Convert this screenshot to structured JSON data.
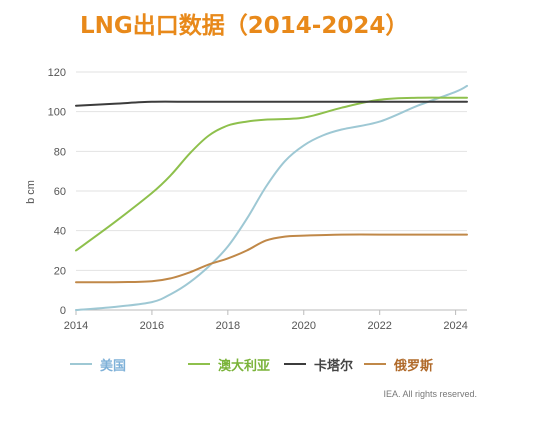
{
  "chart_data": {
    "type": "line",
    "title": "LNG出口数据（2014-2024）",
    "ylabel": "b cm",
    "xlabel": "",
    "xlim": [
      2014,
      2024.3
    ],
    "ylim": [
      0,
      120
    ],
    "x_ticks": [
      2014,
      2016,
      2018,
      2020,
      2022,
      2024
    ],
    "y_ticks": [
      0,
      20,
      40,
      60,
      80,
      100,
      120
    ],
    "grid": true,
    "legend_position": "bottom",
    "series": [
      {
        "name": "美国",
        "color": "#9ec8d4",
        "label_color": "#7fb1d8",
        "points": [
          [
            2014,
            0
          ],
          [
            2015,
            1.5
          ],
          [
            2016,
            4
          ],
          [
            2016.5,
            8
          ],
          [
            2017,
            14
          ],
          [
            2017.5,
            22
          ],
          [
            2018,
            32
          ],
          [
            2018.5,
            46
          ],
          [
            2019,
            62
          ],
          [
            2019.5,
            75
          ],
          [
            2020,
            83
          ],
          [
            2020.5,
            88
          ],
          [
            2021,
            91
          ],
          [
            2022,
            95
          ],
          [
            2023,
            103
          ],
          [
            2024,
            110
          ],
          [
            2024.3,
            113
          ]
        ]
      },
      {
        "name": "澳大利亚",
        "color": "#8ec04c",
        "label_color": "#7ab339",
        "points": [
          [
            2014,
            30
          ],
          [
            2015,
            44
          ],
          [
            2016,
            59
          ],
          [
            2016.5,
            68
          ],
          [
            2017,
            79
          ],
          [
            2017.5,
            88
          ],
          [
            2018,
            93
          ],
          [
            2018.5,
            95
          ],
          [
            2019,
            96
          ],
          [
            2020,
            97
          ],
          [
            2021,
            102
          ],
          [
            2022,
            106
          ],
          [
            2023,
            107
          ],
          [
            2024,
            107
          ],
          [
            2024.3,
            107
          ]
        ]
      },
      {
        "name": "卡塔尔",
        "color": "#3c3c3c",
        "label_color": "#444444",
        "points": [
          [
            2014,
            103
          ],
          [
            2015,
            104
          ],
          [
            2016,
            105
          ],
          [
            2017,
            105
          ],
          [
            2018,
            105
          ],
          [
            2019,
            105
          ],
          [
            2020,
            105
          ],
          [
            2021,
            105
          ],
          [
            2022,
            105
          ],
          [
            2023,
            105
          ],
          [
            2024,
            105
          ],
          [
            2024.3,
            105
          ]
        ]
      },
      {
        "name": "俄罗斯",
        "color": "#c08848",
        "label_color": "#b06a2a",
        "points": [
          [
            2014,
            14
          ],
          [
            2015,
            14
          ],
          [
            2016,
            14.5
          ],
          [
            2016.5,
            16
          ],
          [
            2017,
            19
          ],
          [
            2017.5,
            23
          ],
          [
            2018,
            26
          ],
          [
            2018.5,
            30
          ],
          [
            2019,
            35
          ],
          [
            2019.5,
            37
          ],
          [
            2020,
            37.5
          ],
          [
            2021,
            38
          ],
          [
            2022,
            38
          ],
          [
            2023,
            38
          ],
          [
            2024,
            38
          ],
          [
            2024.3,
            38
          ]
        ]
      }
    ]
  },
  "credit": "IEA. All rights reserved."
}
